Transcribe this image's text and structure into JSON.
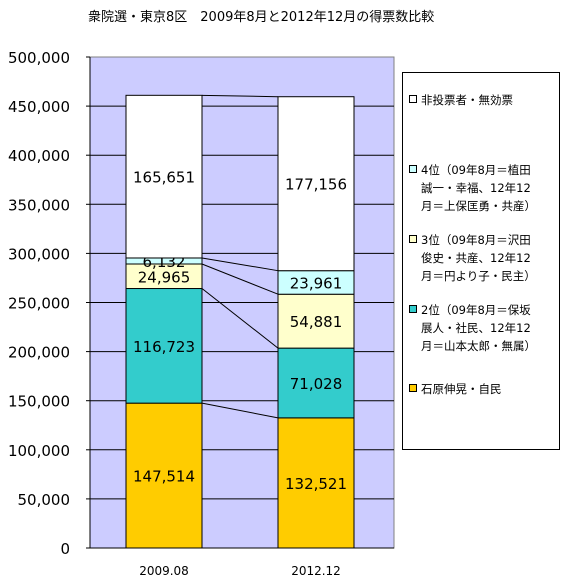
{
  "chart_data": {
    "type": "bar",
    "stacked": true,
    "title": "衆院選・東京8区　2009年8月と2012年12月の得票数比較",
    "categories": [
      "2009.08",
      "2012.12"
    ],
    "ylim": [
      0,
      500000
    ],
    "yticks": [
      "500,000",
      "450,000",
      "400,000",
      "350,000",
      "300,000",
      "250,000",
      "200,000",
      "150,000",
      "100,000",
      "50,000",
      "0"
    ],
    "series": [
      {
        "name": "石原伸晃・自民",
        "color": "#ffcc00",
        "values": [
          147514,
          132521
        ],
        "labels": [
          "147,514",
          "132,521"
        ]
      },
      {
        "name": "2位（09年8月＝保坂展人・社民、12年12月＝山本太郎・無属）",
        "color": "#33cccc",
        "values": [
          116723,
          71028
        ],
        "labels": [
          "116,723",
          "71,028"
        ]
      },
      {
        "name": "3位（09年8月＝沢田俊史・共産、12年12月＝円より子・民主）",
        "color": "#ffffcc",
        "values": [
          24965,
          54881
        ],
        "labels": [
          "24,965",
          "54,881"
        ]
      },
      {
        "name": "4位（09年8月＝植田誠一・幸福、12年12月＝上保匡勇・共産）",
        "color": "#ccffff",
        "values": [
          6132,
          23961
        ],
        "labels": [
          "6,132",
          "23,961"
        ]
      },
      {
        "name": "非投票者・無効票",
        "color": "#ffffff",
        "values": [
          165651,
          177156
        ],
        "labels": [
          "165,651",
          "177,156"
        ]
      }
    ],
    "legend_position": "right",
    "plot_background": "#ccccff",
    "grid": true
  },
  "legend": {
    "items": [
      {
        "lines": [
          "非投票者・無効票"
        ],
        "color": "#ffffff"
      },
      {
        "lines": [
          "4位（09年8月＝植田",
          "誠一・幸福、12年12",
          "月＝上保匡勇・共産）"
        ],
        "color": "#ccffff"
      },
      {
        "lines": [
          "3位（09年8月＝沢田",
          "俊史・共産、12年12",
          "月＝円より子・民主）"
        ],
        "color": "#ffffcc"
      },
      {
        "lines": [
          "2位（09年8月＝保坂",
          "展人・社民、12年12",
          "月＝山本太郎・無属）"
        ],
        "color": "#33cccc"
      },
      {
        "lines": [
          "石原伸晃・自民"
        ],
        "color": "#ffcc00"
      }
    ]
  }
}
